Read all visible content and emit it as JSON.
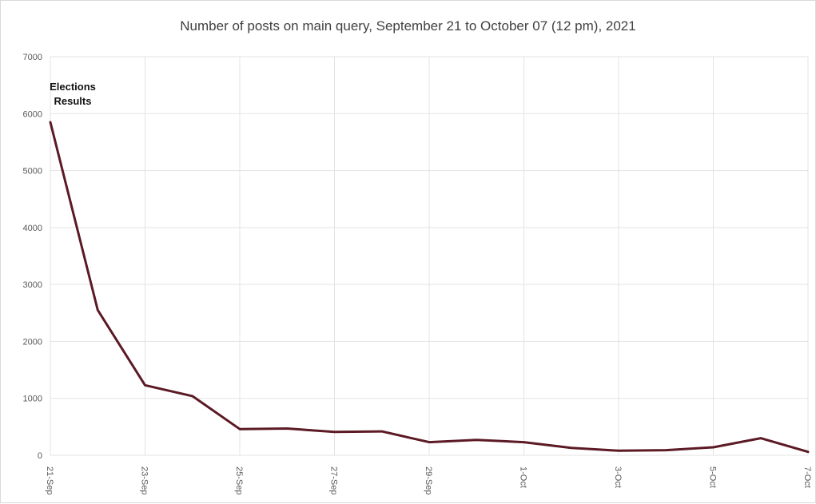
{
  "chart_data": {
    "type": "line",
    "title": "Number of posts on main query, September 21 to October 07 (12 pm), 2021",
    "xlabel": "",
    "ylabel": "",
    "ylim": [
      0,
      7000
    ],
    "y_ticks": [
      0,
      1000,
      2000,
      3000,
      4000,
      5000,
      6000,
      7000
    ],
    "x_tick_labels": [
      "21-Sep",
      "23-Sep",
      "25-Sep",
      "27-Sep",
      "29-Sep",
      "1-Oct",
      "3-Oct",
      "5-Oct",
      "7-Oct"
    ],
    "x": [
      "21-Sep",
      "22-Sep",
      "23-Sep",
      "24-Sep",
      "25-Sep",
      "26-Sep",
      "27-Sep",
      "28-Sep",
      "29-Sep",
      "30-Sep",
      "1-Oct",
      "2-Oct",
      "3-Oct",
      "4-Oct",
      "5-Oct",
      "6-Oct",
      "7-Oct"
    ],
    "series": [
      {
        "values": [
          5850,
          2550,
          1230,
          1040,
          460,
          470,
          410,
          420,
          230,
          270,
          230,
          130,
          80,
          90,
          140,
          300,
          60
        ],
        "color": "#5b1a24"
      }
    ],
    "annotations": [
      {
        "x": "21-Sep",
        "text": "Elections Results"
      }
    ],
    "grid": true,
    "legend": "none"
  }
}
